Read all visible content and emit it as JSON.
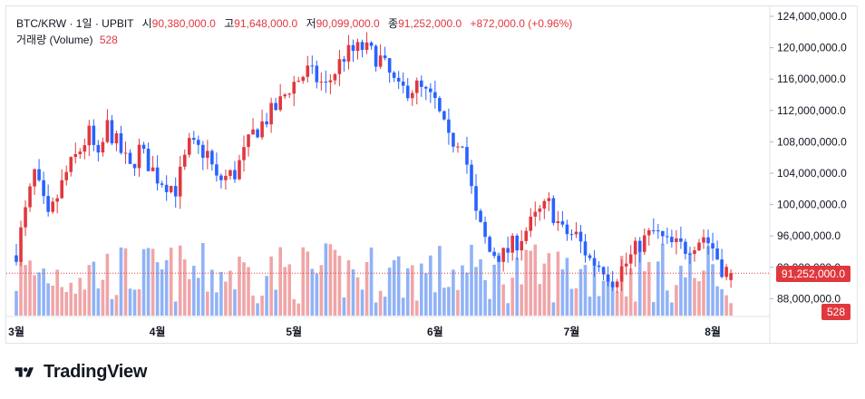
{
  "legend": {
    "symbol": "BTC/KRW · 1일 · UPBIT",
    "open_label": "시",
    "open_value": "90,380,000.0",
    "high_label": "고",
    "high_value": "91,648,000.0",
    "low_label": "저",
    "low_value": "90,099,000.0",
    "close_label": "종",
    "close_value": "91,252,000.0",
    "change": "+872,000.0 (+0.96%)",
    "volume_label": "거래량 (Volume)",
    "volume_value": "528"
  },
  "price_badge": "91,252,000.0",
  "volume_badge": "528",
  "brand": "TradingView",
  "colors": {
    "up": "#e0383e",
    "down": "#2962ff",
    "up_vol": "#f0a5a7",
    "down_vol": "#90b2f6",
    "grid": "#e0e3eb",
    "text": "#131722"
  },
  "chart_data": {
    "type": "candlestick",
    "title": "BTC/KRW · 1일 · UPBIT",
    "y_axis_ticks": [
      "124,000,000.0",
      "120,000,000.0",
      "116,000,000.0",
      "112,000,000.0",
      "108,000,000.0",
      "104,000,000.0",
      "100,000,000.0",
      "96,000,000.0",
      "92,000,000.0",
      "88,000,000.0"
    ],
    "y_axis_values": [
      124000000,
      120000000,
      116000000,
      112000000,
      108000000,
      104000000,
      100000000,
      96000000,
      92000000,
      88000000
    ],
    "ylim": [
      85500000,
      125000000
    ],
    "x_axis_ticks": [
      "3월",
      "4월",
      "5월",
      "6월",
      "7월",
      "8월"
    ],
    "x_tick_dates": [
      "2024-03-01",
      "2024-04-01",
      "2024-05-01",
      "2024-06-01",
      "2024-07-01",
      "2024-08-01"
    ],
    "x_range": [
      "2024-03-01",
      "2024-08-05"
    ],
    "last_close": 91252000,
    "last_volume": 528,
    "approx_close_series": [
      {
        "date": "2024-03-01",
        "close": 94000000
      },
      {
        "date": "2024-03-05",
        "close": 104000000
      },
      {
        "date": "2024-03-08",
        "close": 98000000
      },
      {
        "date": "2024-03-12",
        "close": 104000000
      },
      {
        "date": "2024-03-17",
        "close": 109000000
      },
      {
        "date": "2024-03-19",
        "close": 105500000
      },
      {
        "date": "2024-03-21",
        "close": 110000000
      },
      {
        "date": "2024-03-26",
        "close": 104500000
      },
      {
        "date": "2024-03-28",
        "close": 107000000
      },
      {
        "date": "2024-04-01",
        "close": 103500000
      },
      {
        "date": "2024-04-05",
        "close": 102000000
      },
      {
        "date": "2024-04-08",
        "close": 107500000
      },
      {
        "date": "2024-04-12",
        "close": 106500000
      },
      {
        "date": "2024-04-14",
        "close": 103000000
      },
      {
        "date": "2024-04-18",
        "close": 104000000
      },
      {
        "date": "2024-04-22",
        "close": 109000000
      },
      {
        "date": "2024-04-25",
        "close": 111000000
      },
      {
        "date": "2024-04-28",
        "close": 113000000
      },
      {
        "date": "2024-04-30",
        "close": 115000000
      },
      {
        "date": "2024-05-04",
        "close": 117000000
      },
      {
        "date": "2024-05-08",
        "close": 115000000
      },
      {
        "date": "2024-05-12",
        "close": 119000000
      },
      {
        "date": "2024-05-16",
        "close": 120000000
      },
      {
        "date": "2024-05-20",
        "close": 118500000
      },
      {
        "date": "2024-05-24",
        "close": 114500000
      },
      {
        "date": "2024-05-28",
        "close": 115000000
      },
      {
        "date": "2024-06-01",
        "close": 113000000
      },
      {
        "date": "2024-06-04",
        "close": 108000000
      },
      {
        "date": "2024-06-07",
        "close": 108500000
      },
      {
        "date": "2024-06-10",
        "close": 98500000
      },
      {
        "date": "2024-06-13",
        "close": 94000000
      },
      {
        "date": "2024-06-16",
        "close": 93500000
      },
      {
        "date": "2024-06-20",
        "close": 96000000
      },
      {
        "date": "2024-06-24",
        "close": 99000000
      },
      {
        "date": "2024-06-26",
        "close": 100000000
      },
      {
        "date": "2024-06-29",
        "close": 96500000
      },
      {
        "date": "2024-07-02",
        "close": 96000000
      },
      {
        "date": "2024-07-05",
        "close": 93000000
      },
      {
        "date": "2024-07-08",
        "close": 92000000
      },
      {
        "date": "2024-07-10",
        "close": 90500000
      },
      {
        "date": "2024-07-13",
        "close": 92500000
      },
      {
        "date": "2024-07-16",
        "close": 95000000
      },
      {
        "date": "2024-07-19",
        "close": 96500000
      },
      {
        "date": "2024-07-22",
        "close": 95000000
      },
      {
        "date": "2024-07-26",
        "close": 94500000
      },
      {
        "date": "2024-07-30",
        "close": 96000000
      },
      {
        "date": "2024-08-01",
        "close": 94500000
      },
      {
        "date": "2024-08-03",
        "close": 92000000
      },
      {
        "date": "2024-08-05",
        "close": 91252000
      }
    ]
  }
}
